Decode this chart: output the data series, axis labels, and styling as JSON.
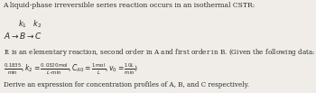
{
  "bg_color": "#f0ede8",
  "text_color": "#2a2a2a",
  "figsize": [
    3.5,
    1.03
  ],
  "dpi": 100,
  "fontsize_small": 5.5,
  "fontsize_rxn": 6.5,
  "line1": "A liquid-phase irreversible series reaction occurs in an isothermal CSTR:",
  "line5": "Derive an expression for concentration profiles of A, B, and C respectively."
}
